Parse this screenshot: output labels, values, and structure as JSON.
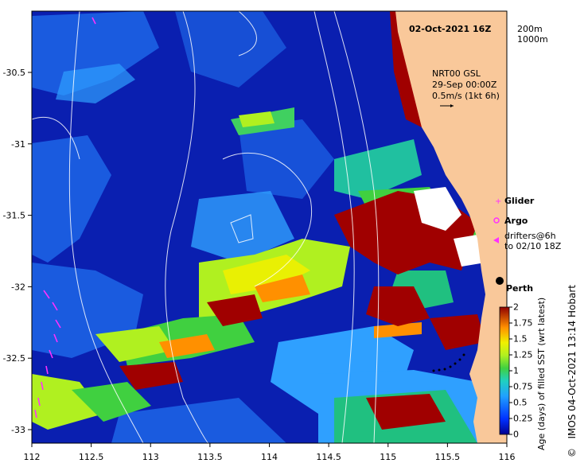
{
  "title": "02-Oct-2021 16Z",
  "scale": {
    "labels": [
      "200m",
      "1000m"
    ]
  },
  "vector_info": {
    "product": "NRT00 GSL",
    "date": "29-Sep 00:00Z",
    "speed": "0.5m/s (1kt 6h)"
  },
  "legend": {
    "glider": "Glider",
    "argo": "Argo",
    "drifters_line1": "drifters@6h",
    "drifters_line2": "to 02/10 18Z",
    "city": "Perth"
  },
  "colorbar": {
    "title": "Age (days) of filled SST (wrt latest)",
    "ticks": [
      "0",
      "0.25",
      "0.5",
      "0.75",
      "1",
      "1.25",
      "1.5",
      "1.75",
      "2"
    ]
  },
  "axes": {
    "x_ticks": [
      "112",
      "112.5",
      "113",
      "113.5",
      "114",
      "114.5",
      "115",
      "115.5",
      "116"
    ],
    "y_ticks": [
      "-30.5",
      "-31",
      "-31.5",
      "-32",
      "-32.5",
      "-33"
    ]
  },
  "credit": {
    "copyright": "©",
    "text": "IMOS 04-Oct-2021 13:14 Hobart"
  },
  "colors": {
    "land": "#f9c89a",
    "deep": "#0a1fb0",
    "mid": "#1a5bdf",
    "recent": "#7ee87e",
    "old": "#a00000"
  }
}
